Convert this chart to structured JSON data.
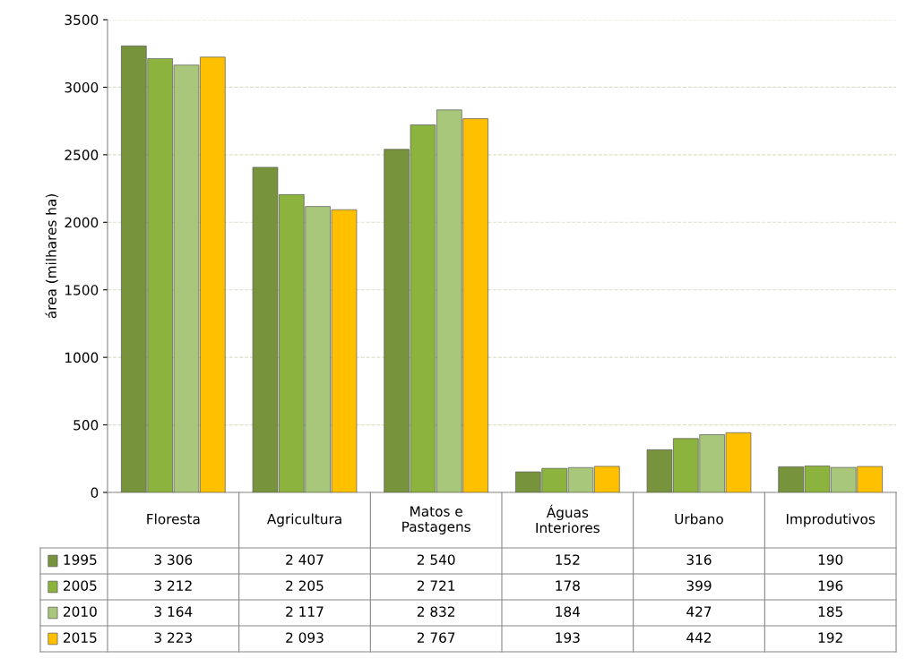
{
  "chart_data": {
    "type": "bar",
    "ylabel": "área (milhares ha)",
    "categories": [
      "Floresta",
      "Agricultura",
      "Matos e Pastagens",
      "Águas Interiores",
      "Urbano",
      "Improdutivos"
    ],
    "series": [
      {
        "name": "1995",
        "color": "#77933c",
        "values": [
          3306,
          2407,
          2540,
          152,
          316,
          190
        ],
        "value_labels": [
          "3 306",
          "2 407",
          "2 540",
          "152",
          "316",
          "190"
        ]
      },
      {
        "name": "2005",
        "color": "#8cb33e",
        "values": [
          3212,
          2205,
          2721,
          178,
          399,
          196
        ],
        "value_labels": [
          "3 212",
          "2 205",
          "2 721",
          "178",
          "399",
          "196"
        ]
      },
      {
        "name": "2010",
        "color": "#a9c77a",
        "values": [
          3164,
          2117,
          2832,
          184,
          427,
          185
        ],
        "value_labels": [
          "3 164",
          "2 117",
          "2 832",
          "184",
          "427",
          "185"
        ]
      },
      {
        "name": "2015",
        "color": "#ffc000",
        "values": [
          3223,
          2093,
          2767,
          193,
          442,
          192
        ],
        "value_labels": [
          "3 223",
          "2 093",
          "2 767",
          "193",
          "442",
          "192"
        ]
      }
    ],
    "ylim": [
      0,
      3500
    ],
    "yticks": [
      0,
      500,
      1000,
      1500,
      2000,
      2500,
      3000,
      3500
    ],
    "grid": "y",
    "legend": "bottom"
  }
}
